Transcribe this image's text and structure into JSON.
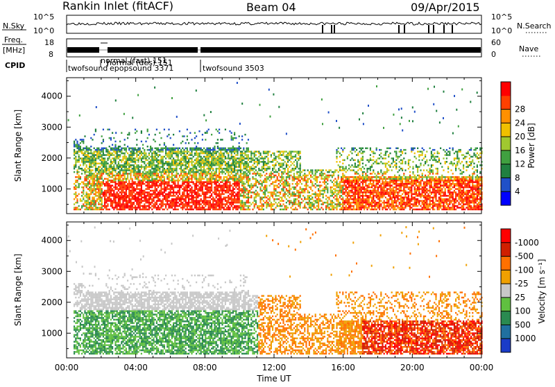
{
  "header": {
    "station": "Rankin Inlet (fitACF)",
    "beam": "Beam 04",
    "date": "09/Apr/2015"
  },
  "panels": {
    "nsky": {
      "left_label": "N.Sky",
      "right_label": "N.Search",
      "left_ticks": [
        "10^5",
        "10^0"
      ],
      "right_ticks": [
        "10^5",
        "10^0"
      ]
    },
    "freq": {
      "left_label_1": "Freq.",
      "left_label_2": "[MHz]",
      "right_label": "Nave",
      "left_ticks": [
        "18",
        "8"
      ],
      "right_ticks": [
        "60",
        "0"
      ]
    },
    "cpid": {
      "label": "CPID",
      "entries": [
        {
          "text": "twofsound"
        },
        {
          "text": "epopsound 3371"
        },
        {
          "text": "normal (fast) 151"
        },
        {
          "text": "normal (des) 151"
        },
        {
          "text": "twofsound 3503"
        }
      ]
    }
  },
  "chart_data": [
    {
      "type": "heatmap",
      "title": "",
      "ylabel": "Slant Range [km]",
      "xlabel": "",
      "x_ticks": [
        "00:00",
        "04:00",
        "08:00",
        "12:00",
        "16:00",
        "20:00",
        "00:00"
      ],
      "y_ticks": [
        1000,
        2000,
        3000,
        4000
      ],
      "ylim": [
        200,
        4600
      ],
      "xlim_hours": [
        0,
        24
      ],
      "colorbar": {
        "label": "Power [dB]",
        "ticks": [
          4,
          8,
          12,
          16,
          20,
          24,
          28
        ],
        "colors": [
          "#0000ff",
          "#2050c8",
          "#208040",
          "#40a040",
          "#a0c830",
          "#f0c000",
          "#ff9000",
          "#ff4000",
          "#ff0000"
        ]
      }
    },
    {
      "type": "heatmap",
      "title": "",
      "ylabel": "Slant Range [km]",
      "xlabel": "Time UT",
      "x_ticks": [
        "00:00",
        "04:00",
        "08:00",
        "12:00",
        "16:00",
        "20:00",
        "00:00"
      ],
      "y_ticks": [
        1000,
        2000,
        3000,
        4000
      ],
      "ylim": [
        200,
        4600
      ],
      "xlim_hours": [
        0,
        24
      ],
      "colorbar": {
        "label": "Velocity [m s⁻¹]",
        "ticks": [
          "1000",
          "500",
          "100",
          "25",
          "-25",
          "-100",
          "-500",
          "-1000"
        ],
        "colors": [
          "#1a3cc8",
          "#2070a0",
          "#2a8a50",
          "#60c040",
          "#c8c8c8",
          "#f0a000",
          "#ff7000",
          "#d02000",
          "#ff0000"
        ]
      }
    }
  ]
}
